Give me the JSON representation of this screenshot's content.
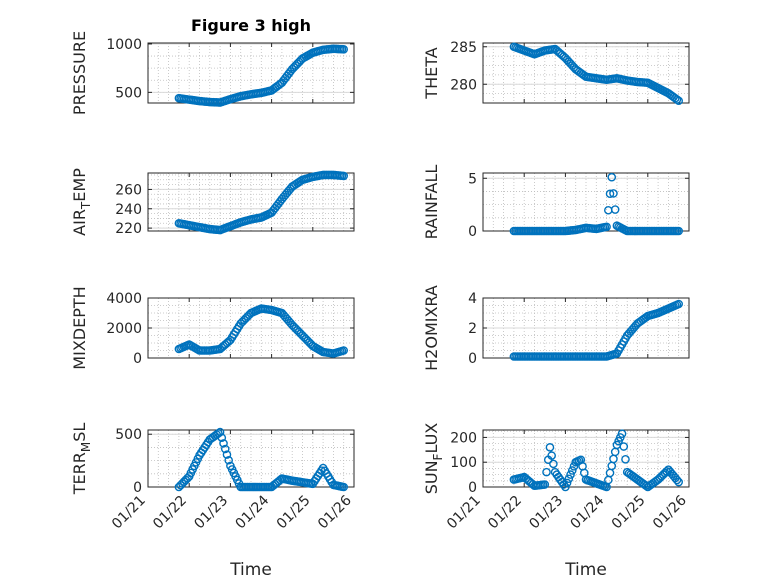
{
  "figure": {
    "title": "Figure 3 high",
    "marker_color": "#0072bd",
    "axes_color": "#262626",
    "grid_color": "#bdbdbd"
  },
  "chart_data": [
    {
      "type": "scatter",
      "ylabel": "PRESSURE",
      "title": "Figure 3 high",
      "xlim": [
        "01/21",
        "01/26"
      ],
      "ylim": [
        390,
        1010
      ],
      "yticks": [
        500,
        1000
      ],
      "x": [
        "01/21 18:00",
        "01/22 00:00",
        "01/22 06:00",
        "01/22 12:00",
        "01/22 18:00",
        "01/23 00:00",
        "01/23 06:00",
        "01/23 12:00",
        "01/23 18:00",
        "01/24 00:00",
        "01/24 06:00",
        "01/24 12:00",
        "01/24 18:00",
        "01/25 00:00",
        "01/25 06:00",
        "01/25 12:00",
        "01/25 18:00"
      ],
      "y": [
        440,
        425,
        410,
        400,
        395,
        430,
        460,
        480,
        495,
        520,
        600,
        740,
        850,
        910,
        940,
        950,
        945
      ]
    },
    {
      "type": "scatter",
      "ylabel": "THETA",
      "xlim": [
        "01/21",
        "01/26"
      ],
      "ylim": [
        277.5,
        285.5
      ],
      "yticks": [
        280,
        285
      ],
      "x": [
        "01/21 18:00",
        "01/22 00:00",
        "01/22 06:00",
        "01/22 12:00",
        "01/22 18:00",
        "01/23 00:00",
        "01/23 06:00",
        "01/23 12:00",
        "01/23 18:00",
        "01/24 00:00",
        "01/24 06:00",
        "01/24 12:00",
        "01/24 18:00",
        "01/25 00:00",
        "01/25 06:00",
        "01/25 12:00",
        "01/25 18:00"
      ],
      "y": [
        285,
        284.5,
        284,
        284.5,
        284.7,
        283.5,
        282,
        281,
        280.8,
        280.6,
        280.8,
        280.5,
        280.3,
        280.2,
        279.5,
        278.8,
        277.8
      ]
    },
    {
      "type": "scatter",
      "ylabel": "AIR_TEMP",
      "xlim": [
        "01/21",
        "01/26"
      ],
      "ylim": [
        217,
        277
      ],
      "yticks": [
        220,
        240,
        260
      ],
      "x": [
        "01/21 18:00",
        "01/22 00:00",
        "01/22 06:00",
        "01/22 12:00",
        "01/22 18:00",
        "01/23 00:00",
        "01/23 06:00",
        "01/23 12:00",
        "01/23 18:00",
        "01/24 00:00",
        "01/24 06:00",
        "01/24 12:00",
        "01/24 18:00",
        "01/25 00:00",
        "01/25 06:00",
        "01/25 12:00",
        "01/25 18:00"
      ],
      "y": [
        225,
        223,
        221,
        219,
        218,
        222,
        226,
        229,
        231,
        236,
        250,
        263,
        270,
        273,
        275,
        275,
        274
      ]
    },
    {
      "type": "scatter",
      "ylabel": "RAINFALL",
      "xlim": [
        "01/21",
        "01/26"
      ],
      "ylim": [
        0,
        5.5
      ],
      "yticks": [
        0,
        5
      ],
      "x": [
        "01/21 18:00",
        "01/22 00:00",
        "01/22 12:00",
        "01/23 00:00",
        "01/23 06:00",
        "01/23 12:00",
        "01/23 18:00",
        "01/24 00:00",
        "01/24 03:00",
        "01/24 06:00",
        "01/24 12:00",
        "01/25 00:00",
        "01/25 12:00",
        "01/25 18:00"
      ],
      "y": [
        0,
        0,
        0,
        0,
        0.1,
        0.3,
        0.2,
        0.4,
        5.1,
        0.5,
        0,
        0,
        0,
        0
      ]
    },
    {
      "type": "scatter",
      "ylabel": "MIXDEPTH",
      "xlim": [
        "01/21",
        "01/26"
      ],
      "ylim": [
        0,
        4000
      ],
      "yticks": [
        0,
        2000,
        4000
      ],
      "x": [
        "01/21 18:00",
        "01/22 00:00",
        "01/22 06:00",
        "01/22 12:00",
        "01/22 18:00",
        "01/23 00:00",
        "01/23 06:00",
        "01/23 12:00",
        "01/23 18:00",
        "01/24 00:00",
        "01/24 06:00",
        "01/24 12:00",
        "01/24 18:00",
        "01/25 00:00",
        "01/25 06:00",
        "01/25 12:00",
        "01/25 18:00"
      ],
      "y": [
        600,
        900,
        500,
        500,
        600,
        1200,
        2300,
        3000,
        3300,
        3200,
        3000,
        2200,
        1500,
        800,
        400,
        300,
        500
      ]
    },
    {
      "type": "scatter",
      "ylabel": "H2OMIXRA",
      "xlim": [
        "01/21",
        "01/26"
      ],
      "ylim": [
        0,
        4
      ],
      "yticks": [
        0,
        2,
        4
      ],
      "x": [
        "01/21 18:00",
        "01/22 00:00",
        "01/22 12:00",
        "01/23 00:00",
        "01/23 12:00",
        "01/24 00:00",
        "01/24 06:00",
        "01/24 12:00",
        "01/24 18:00",
        "01/25 00:00",
        "01/25 06:00",
        "01/25 12:00",
        "01/25 18:00"
      ],
      "y": [
        0.1,
        0.1,
        0.1,
        0.1,
        0.1,
        0.1,
        0.3,
        1.5,
        2.3,
        2.8,
        3.0,
        3.3,
        3.6
      ]
    },
    {
      "type": "scatter",
      "ylabel": "TERR_MSL",
      "xlim": [
        "01/21",
        "01/26"
      ],
      "ylim": [
        0,
        540
      ],
      "yticks": [
        0,
        500
      ],
      "x": [
        "01/21 18:00",
        "01/22 00:00",
        "01/22 06:00",
        "01/22 12:00",
        "01/22 18:00",
        "01/23 00:00",
        "01/23 06:00",
        "01/23 12:00",
        "01/24 00:00",
        "01/24 06:00",
        "01/24 12:00",
        "01/25 00:00",
        "01/25 06:00",
        "01/25 12:00",
        "01/25 18:00"
      ],
      "y": [
        0,
        100,
        300,
        450,
        520,
        200,
        0,
        0,
        0,
        80,
        60,
        30,
        180,
        20,
        0
      ]
    },
    {
      "type": "scatter",
      "ylabel": "SUN_FLUX",
      "xlim": [
        "01/21",
        "01/26"
      ],
      "ylim": [
        0,
        230
      ],
      "yticks": [
        0,
        100,
        200
      ],
      "x": [
        "01/21 18:00",
        "01/22 00:00",
        "01/22 06:00",
        "01/22 12:00",
        "01/22 15:00",
        "01/22 18:00",
        "01/23 00:00",
        "01/23 06:00",
        "01/23 09:00",
        "01/23 12:00",
        "01/24 00:00",
        "01/24 06:00",
        "01/24 09:00",
        "01/24 12:00",
        "01/25 00:00",
        "01/25 06:00",
        "01/25 12:00",
        "01/25 18:00"
      ],
      "y": [
        30,
        40,
        5,
        10,
        160,
        60,
        0,
        100,
        110,
        30,
        0,
        170,
        215,
        60,
        0,
        30,
        70,
        20
      ]
    }
  ],
  "xaxis": {
    "label": "Time",
    "ticks": [
      "01/21",
      "01/22",
      "01/23",
      "01/24",
      "01/25",
      "01/26"
    ]
  }
}
